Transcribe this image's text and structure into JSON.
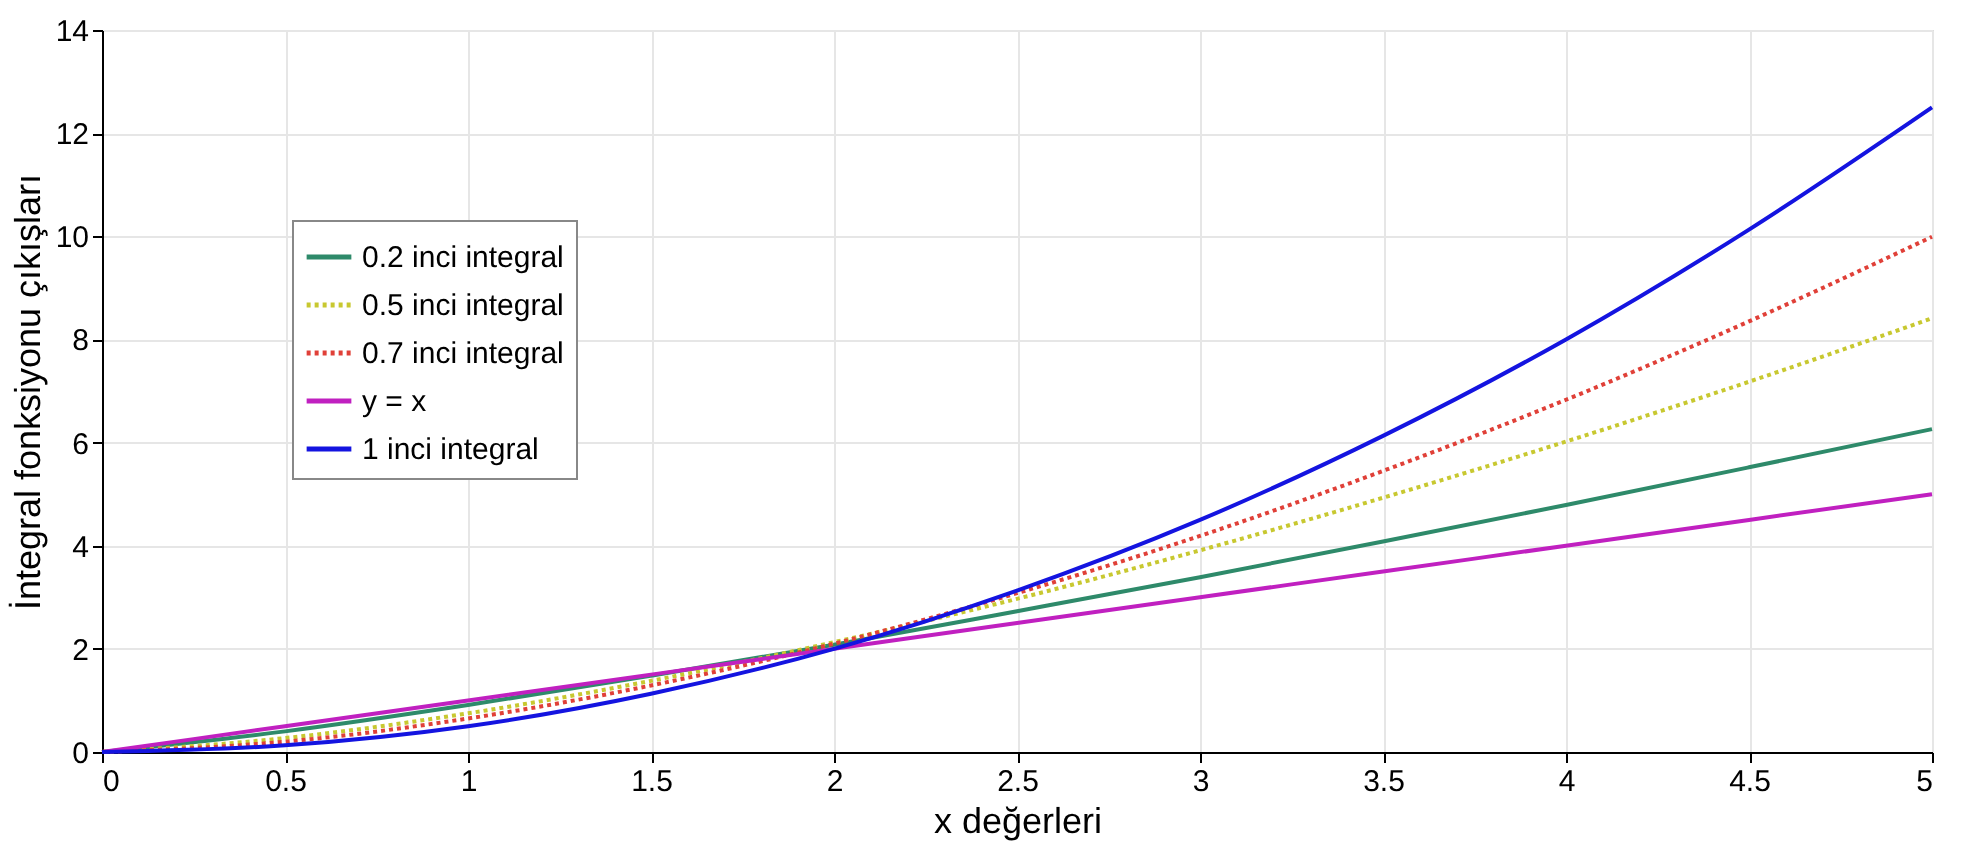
{
  "chart_data": {
    "type": "line",
    "xlabel": "x değerleri",
    "ylabel": "İntegral fonksiyonu çıkışları",
    "x": [
      0,
      0.5,
      1,
      1.5,
      2,
      2.5,
      3,
      3.5,
      4,
      4.5,
      5
    ],
    "series": [
      {
        "name": "0.2 inci integral",
        "color": "#2e8a6a",
        "line_style": "solid",
        "values": [
          0,
          0.4,
          0.91,
          1.48,
          2.08,
          2.73,
          3.39,
          4.08,
          4.79,
          5.52,
          6.26
        ]
      },
      {
        "name": "0.5 inci integral",
        "color": "#c8c830",
        "line_style": "dotted",
        "values": [
          0,
          0.27,
          0.75,
          1.38,
          2.13,
          2.97,
          3.91,
          4.93,
          6.02,
          7.18,
          8.41
        ]
      },
      {
        "name": "0.7 inci integral",
        "color": "#e04038",
        "line_style": "dotted",
        "values": [
          0,
          0.2,
          0.65,
          1.29,
          2.1,
          3.08,
          4.19,
          5.45,
          6.83,
          8.35,
          9.99
        ]
      },
      {
        "name": "y = x",
        "color": "#c020c0",
        "line_style": "solid",
        "values": [
          0,
          0.5,
          1,
          1.5,
          2,
          2.5,
          3,
          3.5,
          4,
          4.5,
          5
        ]
      },
      {
        "name": "1 inci integral",
        "color": "#1414e0",
        "line_style": "solid",
        "values": [
          0,
          0.13,
          0.5,
          1.13,
          2,
          3.13,
          4.5,
          6.13,
          8,
          10.13,
          12.5
        ]
      }
    ],
    "xlim": [
      0,
      5
    ],
    "xticks": [
      0,
      0.5,
      1,
      1.5,
      2,
      2.5,
      3,
      3.5,
      4,
      4.5,
      5
    ],
    "ylim": [
      0,
      14
    ],
    "yticks": [
      0,
      2,
      4,
      6,
      8,
      10,
      12,
      14
    ],
    "grid": true,
    "legend": "top left",
    "marker": "none"
  }
}
